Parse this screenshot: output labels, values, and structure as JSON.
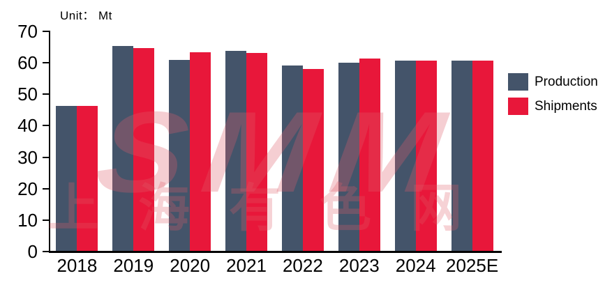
{
  "unit_label": "Unit： Mt",
  "watermark": {
    "line1": "SMM",
    "line2": "上海有色网"
  },
  "colors": {
    "production": "#44546A",
    "shipments": "#E8173A",
    "axis": "#000000",
    "watermark_tint": "rgba(223,94,105,0.30)"
  },
  "legend": {
    "items": [
      {
        "label": "Production",
        "color": "#44546A"
      },
      {
        "label": "Shipments",
        "color": "#E8173A"
      }
    ]
  },
  "chart_data": {
    "type": "bar",
    "title": "",
    "unit": "Mt",
    "categories": [
      "2018",
      "2019",
      "2020",
      "2021",
      "2022",
      "2023",
      "2024",
      "2025E"
    ],
    "series": [
      {
        "name": "Production",
        "color": "#44546A",
        "values": [
          46.3,
          65.4,
          60.9,
          63.7,
          59.2,
          60.0,
          60.6,
          60.8
        ]
      },
      {
        "name": "Shipments",
        "color": "#E8173A",
        "values": [
          46.3,
          64.7,
          63.4,
          63.2,
          58.0,
          61.4,
          60.8,
          60.8
        ]
      }
    ],
    "ylim": [
      0,
      70
    ],
    "yticks": [
      0,
      10,
      20,
      30,
      40,
      50,
      60,
      70
    ],
    "grid": false,
    "legend_position": "right"
  }
}
